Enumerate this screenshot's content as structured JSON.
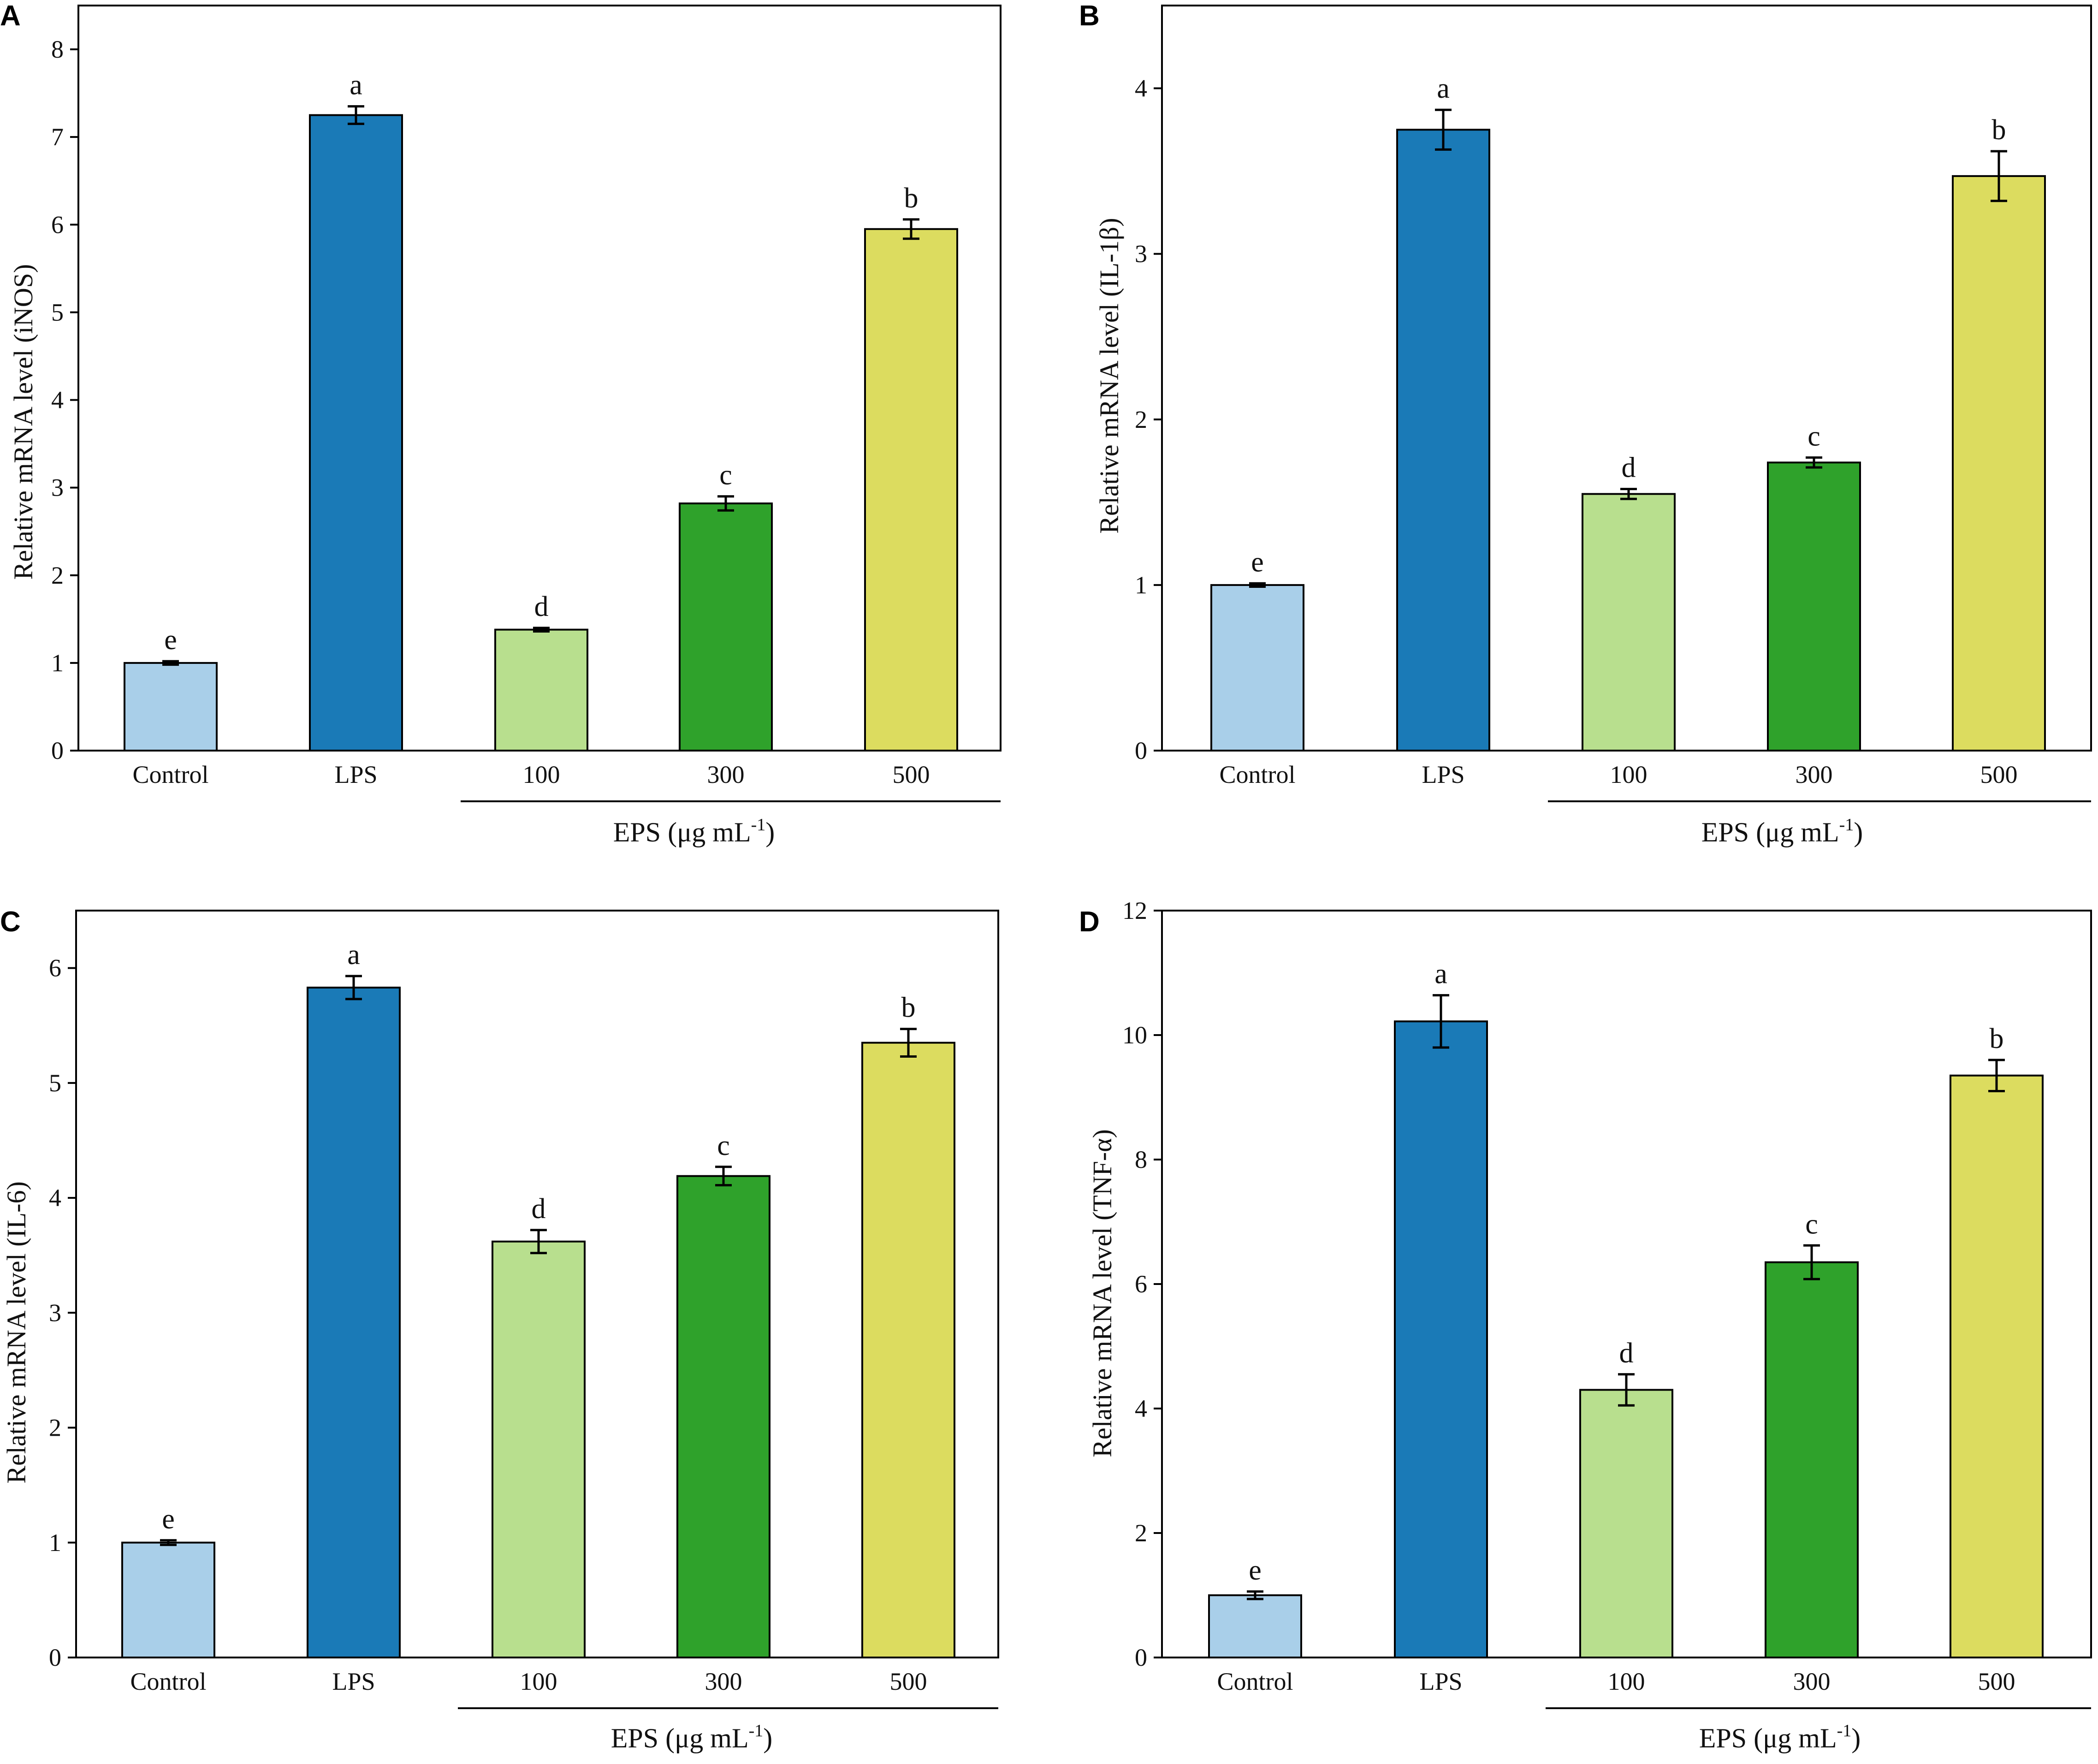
{
  "figure": {
    "group_axis_label": "EPS (μg mL",
    "group_axis_exponent": "-1",
    "group_axis_close": ")"
  },
  "colors": {
    "Control": "#a9cfe9",
    "LPS": "#1a7ab7",
    "100": "#b8df8e",
    "300": "#2fa22b",
    "500": "#dcdc5f",
    "axis": "#000000"
  },
  "chart_data": [
    {
      "panel": "A",
      "type": "bar",
      "categories": [
        "Control",
        "LPS",
        "100",
        "300",
        "500"
      ],
      "values": [
        1.0,
        7.25,
        1.38,
        2.82,
        5.95
      ],
      "errors": [
        0.02,
        0.1,
        0.02,
        0.08,
        0.11
      ],
      "significance": [
        "e",
        "a",
        "d",
        "c",
        "b"
      ],
      "ylabel": "Relative mRNA level (iNOS)",
      "ylim": [
        0,
        8.5
      ],
      "yticks": [
        0,
        1,
        2,
        3,
        4,
        5,
        6,
        7,
        8
      ],
      "group_bracket": {
        "categories": [
          "100",
          "300",
          "500"
        ],
        "label": "EPS (μg mL-1)"
      }
    },
    {
      "panel": "B",
      "type": "bar",
      "categories": [
        "Control",
        "LPS",
        "100",
        "300",
        "500"
      ],
      "values": [
        1.0,
        3.75,
        1.55,
        1.74,
        3.47
      ],
      "errors": [
        0.01,
        0.12,
        0.03,
        0.03,
        0.15
      ],
      "significance": [
        "e",
        "a",
        "d",
        "c",
        "b"
      ],
      "ylabel": "Relative mRNA level (IL-1β)",
      "ylim": [
        0,
        4.5
      ],
      "yticks": [
        0,
        1,
        2,
        3,
        4
      ],
      "group_bracket": {
        "categories": [
          "100",
          "300",
          "500"
        ],
        "label": "EPS (μg mL-1)"
      }
    },
    {
      "panel": "C",
      "type": "bar",
      "categories": [
        "Control",
        "LPS",
        "100",
        "300",
        "500"
      ],
      "values": [
        1.0,
        5.83,
        3.62,
        4.19,
        5.35
      ],
      "errors": [
        0.02,
        0.1,
        0.1,
        0.08,
        0.12
      ],
      "significance": [
        "e",
        "a",
        "d",
        "c",
        "b"
      ],
      "ylabel": "Relative mRNA level (IL-6)",
      "ylim": [
        0,
        6.5
      ],
      "yticks": [
        0,
        1,
        2,
        3,
        4,
        5,
        6
      ],
      "group_bracket": {
        "categories": [
          "100",
          "300",
          "500"
        ],
        "label": "EPS (μg mL-1)"
      }
    },
    {
      "panel": "D",
      "type": "bar",
      "categories": [
        "Control",
        "LPS",
        "100",
        "300",
        "500"
      ],
      "values": [
        1.0,
        10.22,
        4.3,
        6.35,
        9.35
      ],
      "errors": [
        0.06,
        0.42,
        0.25,
        0.27,
        0.25
      ],
      "significance": [
        "e",
        "a",
        "d",
        "c",
        "b"
      ],
      "ylabel": "Relative mRNA level (TNF-α)",
      "ylim": [
        0,
        12
      ],
      "yticks": [
        0,
        2,
        4,
        6,
        8,
        10,
        12
      ],
      "group_bracket": {
        "categories": [
          "100",
          "300",
          "500"
        ],
        "label": "EPS (μg mL-1)"
      }
    }
  ]
}
